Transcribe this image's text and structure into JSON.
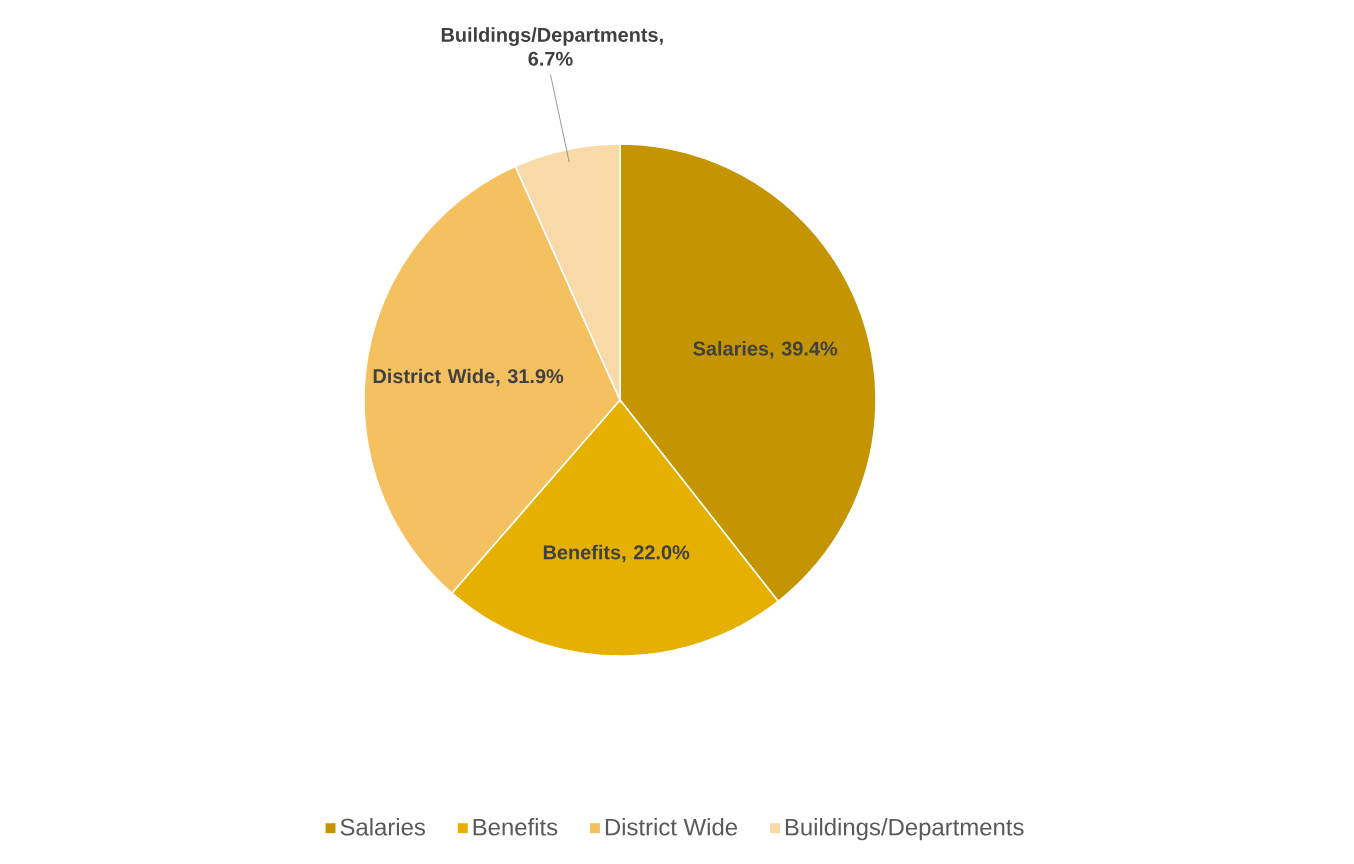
{
  "chart_data": {
    "type": "pie",
    "categories": [
      "Salaries",
      "Benefits",
      "District Wide",
      "Buildings/Departments"
    ],
    "values": [
      39.4,
      22.0,
      31.9,
      6.7
    ],
    "value_labels": [
      "Salaries, 39.4%",
      "Benefits, 22.0%",
      "District Wide, 31.9%",
      "Buildings/Departments, 6.7%"
    ],
    "colors": [
      "#c49500",
      "#e6b000",
      "#f5c060",
      "#f8d9a8"
    ],
    "legend": "bottom"
  }
}
